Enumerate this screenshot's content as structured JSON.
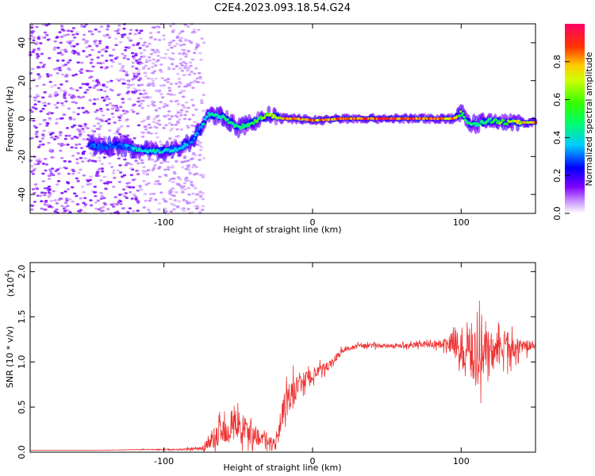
{
  "title": "C2E4.2023.093.18.54.G24",
  "chart_data": [
    {
      "type": "heatmap",
      "xlabel": "Height of straight line (km)",
      "ylabel": "Frequency (Hz)",
      "xlim": [
        -190,
        150
      ],
      "ylim": [
        -50,
        50
      ],
      "xticks": [
        -100,
        0,
        100
      ],
      "yticks": [
        -40,
        -20,
        0,
        20,
        40
      ],
      "colorbar": {
        "label": "Normalized spectral amplitude",
        "range": [
          0,
          1
        ],
        "ticks": [
          0.0,
          0.2,
          0.4,
          0.6,
          0.8
        ]
      },
      "ridge": {
        "x": [
          -150,
          -140,
          -130,
          -120,
          -110,
          -100,
          -90,
          -80,
          -70,
          -60,
          -50,
          -40,
          -30,
          -20,
          -10,
          0,
          20,
          50,
          80,
          95,
          100,
          105,
          110,
          120,
          130,
          140,
          150
        ],
        "y": [
          -14,
          -15,
          -14,
          -16,
          -17,
          -17,
          -16,
          -11,
          2,
          1,
          -5,
          -2,
          2,
          0,
          0,
          -1,
          0,
          0,
          0,
          0,
          3,
          -2,
          -3,
          -1,
          -2,
          -2,
          -2
        ],
        "intensity": [
          0.3,
          0.35,
          0.3,
          0.4,
          0.45,
          0.45,
          0.4,
          0.35,
          0.45,
          0.5,
          0.5,
          0.55,
          0.7,
          0.85,
          0.9,
          0.9,
          0.95,
          1.0,
          0.95,
          0.85,
          0.6,
          0.5,
          0.5,
          0.55,
          0.65,
          0.8,
          0.9
        ]
      },
      "noise_region": [
        -190,
        -85
      ]
    },
    {
      "type": "line",
      "xlabel": "Height of straight line (km)",
      "ylabel": "SNR (10 * v/v)",
      "yscale_label": "(x10",
      "yscale_exp": "4",
      "xlim": [
        -190,
        150
      ],
      "ylim": [
        0,
        2.1
      ],
      "xticks": [
        -100,
        0,
        100
      ],
      "yticks": [
        0.0,
        0.5,
        1.0,
        1.5,
        2.0
      ],
      "color": "#ee3333",
      "series": [
        {
          "x": [
            -190,
            -150,
            -110,
            -90,
            -75,
            -70,
            -60,
            -50,
            -40,
            -30,
            -25,
            -20,
            -15,
            -10,
            -5,
            0,
            10,
            20,
            30,
            40,
            60,
            80,
            90,
            95,
            100,
            105,
            110,
            115,
            120,
            130,
            140,
            150
          ],
          "y": [
            0.02,
            0.02,
            0.03,
            0.03,
            0.04,
            0.1,
            0.25,
            0.3,
            0.2,
            0.12,
            0.1,
            0.45,
            0.6,
            0.75,
            0.8,
            0.85,
            0.95,
            1.12,
            1.18,
            1.18,
            1.18,
            1.2,
            1.2,
            1.22,
            1.15,
            1.1,
            1.1,
            1.12,
            1.12,
            1.15,
            1.17,
            1.18
          ],
          "noise": [
            0,
            0,
            0.005,
            0.01,
            0.02,
            0.12,
            0.2,
            0.22,
            0.15,
            0.08,
            0.05,
            0.2,
            0.2,
            0.18,
            0.12,
            0.1,
            0.06,
            0.04,
            0.03,
            0.03,
            0.03,
            0.04,
            0.08,
            0.15,
            0.3,
            0.4,
            0.45,
            0.35,
            0.3,
            0.2,
            0.1,
            0.06
          ]
        }
      ]
    }
  ]
}
